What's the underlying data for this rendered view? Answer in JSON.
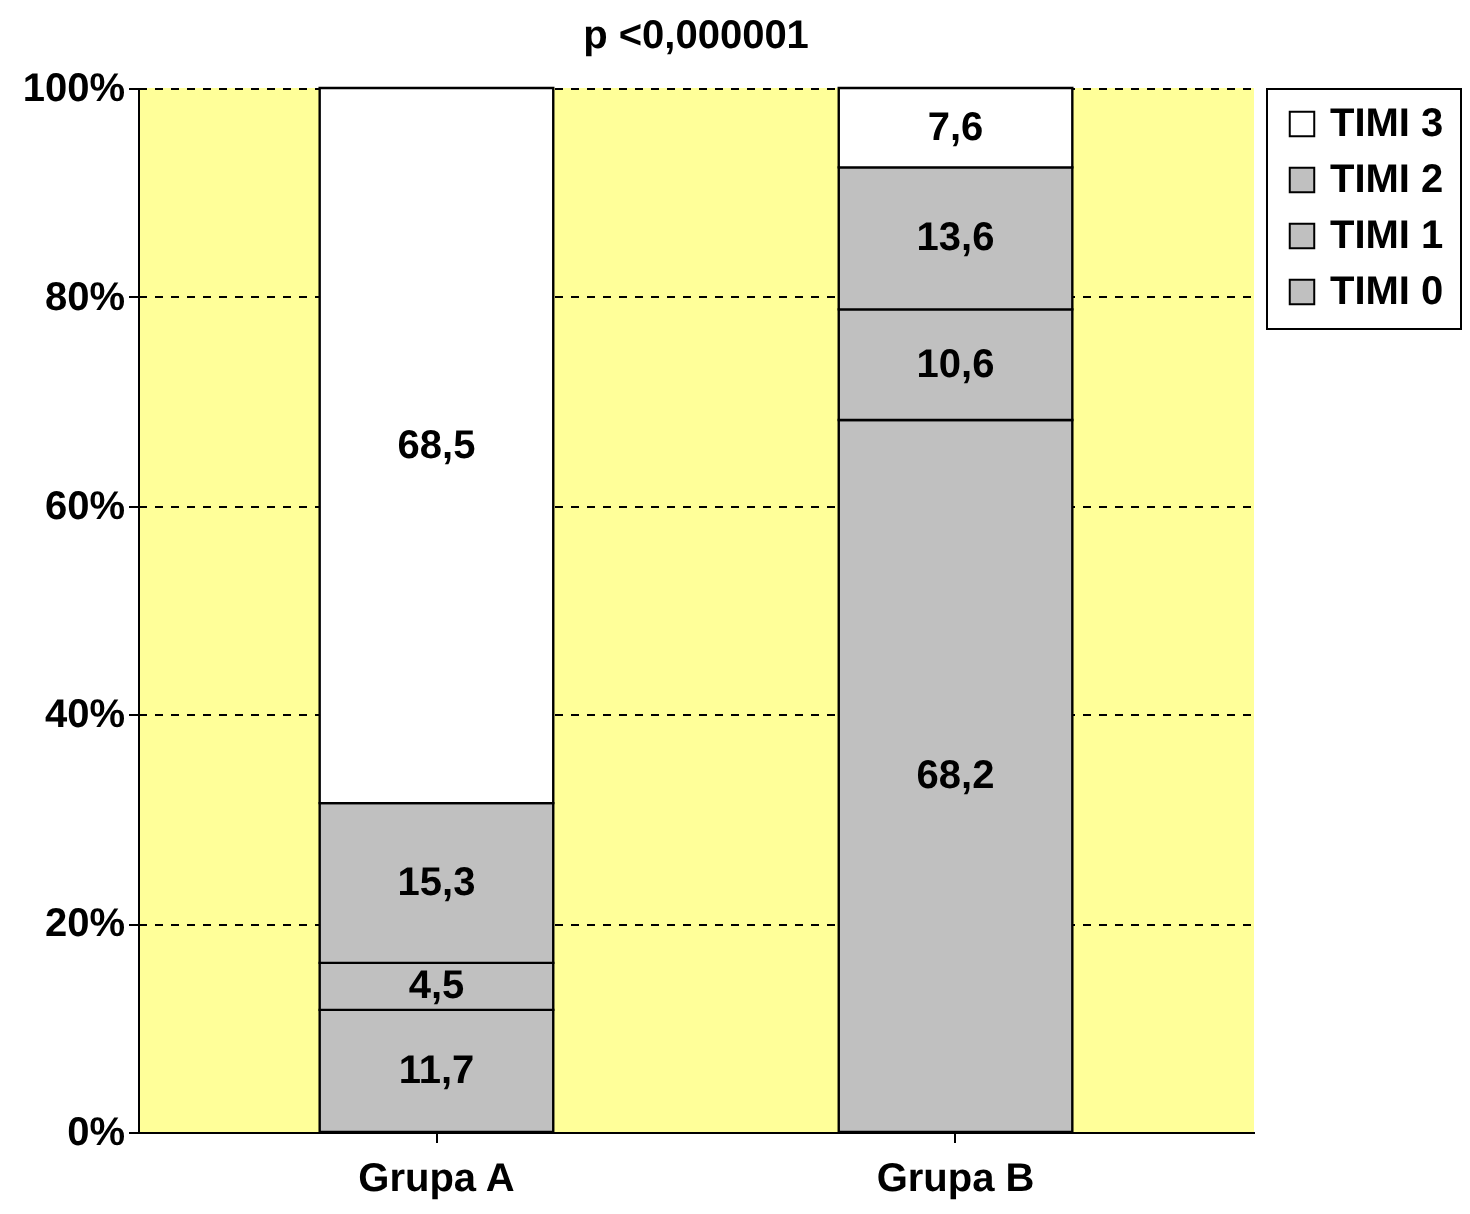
{
  "chart_data": {
    "type": "bar",
    "title": "p <0,000001",
    "categories": [
      "Grupa A",
      "Grupa B"
    ],
    "stacked": true,
    "series": [
      {
        "name": "TIMI 0",
        "color": "#c0c0c0",
        "values": [
          11.7,
          68.2
        ],
        "value_labels": [
          "11,7",
          "68,2"
        ]
      },
      {
        "name": "TIMI 1",
        "color": "#c0c0c0",
        "values": [
          4.5,
          10.6
        ],
        "value_labels": [
          "4,5",
          "10,6"
        ]
      },
      {
        "name": "TIMI 2",
        "color": "#c0c0c0",
        "values": [
          15.3,
          13.6
        ],
        "value_labels": [
          "15,3",
          "13,6"
        ]
      },
      {
        "name": "TIMI 3",
        "color": "#ffffff",
        "values": [
          68.5,
          7.6
        ],
        "value_labels": [
          "68,5",
          "7,6"
        ]
      }
    ],
    "ylim": [
      0,
      100
    ],
    "yticks": [
      {
        "value": 0,
        "label": "0%"
      },
      {
        "value": 20,
        "label": "20%"
      },
      {
        "value": 40,
        "label": "40%"
      },
      {
        "value": 60,
        "label": "60%"
      },
      {
        "value": 80,
        "label": "80%"
      },
      {
        "value": 100,
        "label": "100%"
      }
    ],
    "grid": "y",
    "legend": "right"
  }
}
